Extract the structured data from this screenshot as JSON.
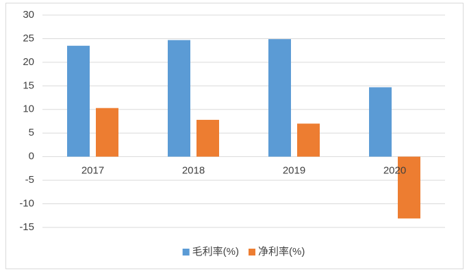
{
  "chart_data": {
    "type": "bar",
    "categories": [
      "2017",
      "2018",
      "2019",
      "2020"
    ],
    "series": [
      {
        "name": "毛利率(%)",
        "color": "#5b9bd5",
        "values": [
          23.5,
          24.7,
          24.9,
          14.7
        ]
      },
      {
        "name": "净利率(%)",
        "color": "#ed7d31",
        "values": [
          10.3,
          7.8,
          7.0,
          -13.1
        ]
      }
    ],
    "ylim": [
      -15,
      30
    ],
    "yticks": [
      -15,
      -10,
      -5,
      0,
      5,
      10,
      15,
      20,
      25,
      30
    ],
    "grid": true,
    "legend": "bottom"
  }
}
